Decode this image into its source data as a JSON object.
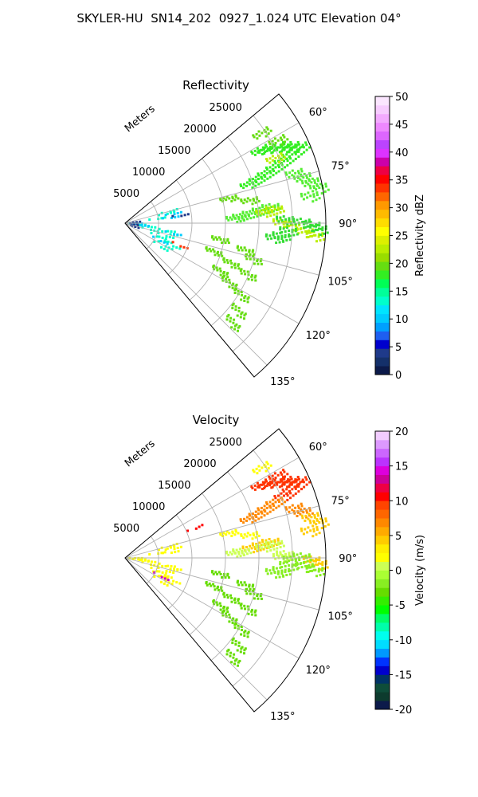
{
  "title": "SKYLER-HU  SN14_202  0927_1.024 UTC Elevation 04°",
  "chart_data": [
    {
      "type": "polar_sector",
      "title": "Reflectivity",
      "range_label": "Meters",
      "range_ticks": [
        5000,
        10000,
        15000,
        20000,
        25000
      ],
      "range_max": 30000,
      "azimuth_range_deg": [
        50,
        140
      ],
      "azimuth_ticks": [
        "60°",
        "75°",
        "90°",
        "105°",
        "120°",
        "135°"
      ],
      "azimuth_tick_values": [
        60,
        75,
        90,
        105,
        120,
        135
      ],
      "colorbar": {
        "label": "Reflectivity dBZ",
        "min": 0,
        "max": 50,
        "ticks": [
          "0",
          "5",
          "10",
          "15",
          "20",
          "25",
          "30",
          "35",
          "40",
          "45",
          "50"
        ],
        "colors": [
          "#0c1a4a",
          "#14306a",
          "#1f3a8a",
          "#0000cd",
          "#1e5ff0",
          "#00a0ff",
          "#00ccff",
          "#00e5ff",
          "#00ffcc",
          "#00ff99",
          "#00ff55",
          "#33ee22",
          "#66dd11",
          "#99dd00",
          "#bbee00",
          "#ddf000",
          "#ffff00",
          "#ffdd00",
          "#ffbb00",
          "#ff9900",
          "#ff6600",
          "#ff3300",
          "#ff0000",
          "#ee0044",
          "#cc00aa",
          "#dd33ff",
          "#bb44ff",
          "#dd66ff",
          "#ee88ff",
          "#f3aaff",
          "#f7ccff",
          "#fbe6ff"
        ]
      },
      "echo_regions": [
        {
          "color": "#33ee22",
          "cells": [
            [
              62,
              23000
            ],
            [
              63,
              24000
            ],
            [
              64,
              25500
            ],
            [
              65,
              26500
            ],
            [
              66,
              27500
            ],
            [
              67,
              28500
            ],
            [
              68,
              27000
            ],
            [
              69,
              25500
            ],
            [
              70,
              24000
            ],
            [
              71,
              22500
            ],
            [
              72,
              21000
            ],
            [
              73,
              19500
            ]
          ]
        },
        {
          "color": "#55ee33",
          "cells": [
            [
              74,
              26500
            ],
            [
              76,
              27500
            ],
            [
              78,
              28500
            ],
            [
              80,
              29500
            ],
            [
              82,
              28000
            ],
            [
              84,
              22000
            ],
            [
              85,
              20500
            ],
            [
              86,
              19000
            ],
            [
              87,
              17500
            ],
            [
              88,
              16500
            ]
          ]
        },
        {
          "color": "#bbee00",
          "cells": [
            [
              67,
              24500
            ],
            [
              85,
              22500
            ],
            [
              86,
              21000
            ],
            [
              90,
              23500
            ],
            [
              91,
              25000
            ],
            [
              93,
              27000
            ],
            [
              94,
              28500
            ]
          ]
        },
        {
          "color": "#33dd33",
          "cells": [
            [
              89,
              24000
            ],
            [
              90,
              26500
            ],
            [
              91,
              28000
            ],
            [
              92,
              29000
            ],
            [
              93,
              24500
            ],
            [
              95,
              23500
            ],
            [
              96,
              22500
            ]
          ]
        },
        {
          "color": "#00ffcc",
          "cells": [
            [
              76,
              7000
            ],
            [
              78,
              6500
            ],
            [
              83,
              5000
            ],
            [
              96,
              2000
            ],
            [
              99,
              3500
            ],
            [
              101,
              6500
            ],
            [
              104,
              7000
            ],
            [
              108,
              6500
            ],
            [
              112,
              5500
            ],
            [
              114,
              6500
            ],
            [
              116,
              8000
            ],
            [
              120,
              7000
            ],
            [
              124,
              6500
            ],
            [
              105,
              4000
            ]
          ]
        },
        {
          "color": "#00ccff",
          "cells": [
            [
              80,
              7500
            ],
            [
              84,
              7000
            ],
            [
              98,
              2500
            ],
            [
              103,
              7500
            ],
            [
              117,
              6000
            ],
            [
              92,
              1500
            ]
          ]
        },
        {
          "color": "#1f3a8a",
          "cells": [
            [
              94,
              800
            ],
            [
              86,
              1200
            ],
            [
              102,
              900
            ],
            [
              110,
              1100
            ],
            [
              83,
              8500
            ]
          ]
        },
        {
          "color": "#ff3300",
          "cells": [
            [
              113,
              9000
            ]
          ]
        },
        {
          "color": "#66dd11",
          "cells": [
            [
              100,
              14500
            ],
            [
              103,
              18500
            ],
            [
              106,
              20000
            ],
            [
              108,
              14000
            ],
            [
              111,
              17000
            ],
            [
              113,
              20000
            ],
            [
              117,
              16000
            ],
            [
              120,
              18000
            ],
            [
              122,
              20500
            ],
            [
              128,
              21500
            ],
            [
              133,
              22000
            ],
            [
              62,
              26000
            ],
            [
              57,
              24500
            ],
            [
              77,
              16000
            ],
            [
              80,
              19000
            ]
          ]
        }
      ]
    },
    {
      "type": "polar_sector",
      "title": "Velocity",
      "range_label": "Meters",
      "range_ticks": [
        5000,
        10000,
        15000,
        20000,
        25000
      ],
      "range_max": 30000,
      "azimuth_range_deg": [
        50,
        140
      ],
      "azimuth_ticks": [
        "60°",
        "75°",
        "90°",
        "105°",
        "120°",
        "135°"
      ],
      "azimuth_tick_values": [
        60,
        75,
        90,
        105,
        120,
        135
      ],
      "colorbar": {
        "label": "Velocity (m/s)",
        "min": -20,
        "max": 20,
        "ticks": [
          "-20",
          "-15",
          "-10",
          "-5",
          "0",
          "5",
          "10",
          "15",
          "20"
        ],
        "colors": [
          "#0c1a4a",
          "#0d3b2e",
          "#0e4d3a",
          "#003366",
          "#0000cd",
          "#0033ff",
          "#0099ff",
          "#00ddff",
          "#00ffee",
          "#00ffaa",
          "#00ff66",
          "#00ff00",
          "#33ee00",
          "#66dd00",
          "#88ee22",
          "#aaff33",
          "#ccff55",
          "#ffff00",
          "#ffee00",
          "#ffcc00",
          "#ffaa00",
          "#ff8800",
          "#ff6600",
          "#ff4400",
          "#ff0000",
          "#ee0044",
          "#cc0099",
          "#dd00dd",
          "#bb33ff",
          "#cc66ff",
          "#dd99ff",
          "#f2ccff"
        ]
      },
      "echo_regions": [
        {
          "color": "#ff3300",
          "cells": [
            [
              62,
              23000
            ],
            [
              63,
              24000
            ],
            [
              64,
              25500
            ],
            [
              65,
              26500
            ],
            [
              66,
              27500
            ],
            [
              67,
              28500
            ],
            [
              68,
              27000
            ],
            [
              69,
              25500
            ],
            [
              62,
              26000
            ]
          ]
        },
        {
          "color": "#ff8800",
          "cells": [
            [
              70,
              24000
            ],
            [
              71,
              22500
            ],
            [
              72,
              21000
            ],
            [
              73,
              19500
            ],
            [
              74,
              26500
            ],
            [
              76,
              27500
            ]
          ]
        },
        {
          "color": "#ffcc00",
          "cells": [
            [
              78,
              28500
            ],
            [
              80,
              29500
            ],
            [
              82,
              28000
            ],
            [
              84,
              22000
            ],
            [
              85,
              20500
            ],
            [
              86,
              19000
            ],
            [
              91,
              28000
            ],
            [
              92,
              29000
            ]
          ]
        },
        {
          "color": "#ccff55",
          "cells": [
            [
              86,
              21000
            ],
            [
              87,
              17500
            ],
            [
              88,
              16500
            ],
            [
              85,
              22500
            ],
            [
              89,
              24000
            ],
            [
              90,
              23500
            ]
          ]
        },
        {
          "color": "#88ee22",
          "cells": [
            [
              90,
              26500
            ],
            [
              91,
              25000
            ],
            [
              93,
              24500
            ],
            [
              93,
              27000
            ],
            [
              94,
              28500
            ],
            [
              95,
              23500
            ],
            [
              96,
              22500
            ]
          ]
        },
        {
          "color": "#ffff00",
          "cells": [
            [
              76,
              7000
            ],
            [
              78,
              6500
            ],
            [
              83,
              5000
            ],
            [
              96,
              2000
            ],
            [
              99,
              3500
            ],
            [
              101,
              6500
            ],
            [
              104,
              7000
            ],
            [
              108,
              6500
            ],
            [
              112,
              5500
            ],
            [
              114,
              6500
            ],
            [
              116,
              8000
            ],
            [
              120,
              7000
            ],
            [
              124,
              6500
            ],
            [
              105,
              4000
            ],
            [
              80,
              7500
            ],
            [
              84,
              7000
            ],
            [
              98,
              2500
            ],
            [
              103,
              7500
            ],
            [
              117,
              6000
            ],
            [
              92,
              1500
            ],
            [
              57,
              24500
            ],
            [
              77,
              16000
            ],
            [
              80,
              19000
            ]
          ]
        },
        {
          "color": "#cc00cc",
          "cells": [
            [
              118,
              6200
            ]
          ]
        },
        {
          "color": "#ff0000",
          "cells": [
            [
              68,
              11500
            ]
          ]
        },
        {
          "color": "#66dd00",
          "cells": [
            [
              100,
              14500
            ],
            [
              103,
              18500
            ],
            [
              106,
              20000
            ],
            [
              108,
              14000
            ],
            [
              111,
              17000
            ],
            [
              113,
              20000
            ],
            [
              117,
              16000
            ],
            [
              120,
              18000
            ],
            [
              122,
              20500
            ],
            [
              128,
              21500
            ],
            [
              133,
              22000
            ]
          ]
        }
      ]
    }
  ]
}
